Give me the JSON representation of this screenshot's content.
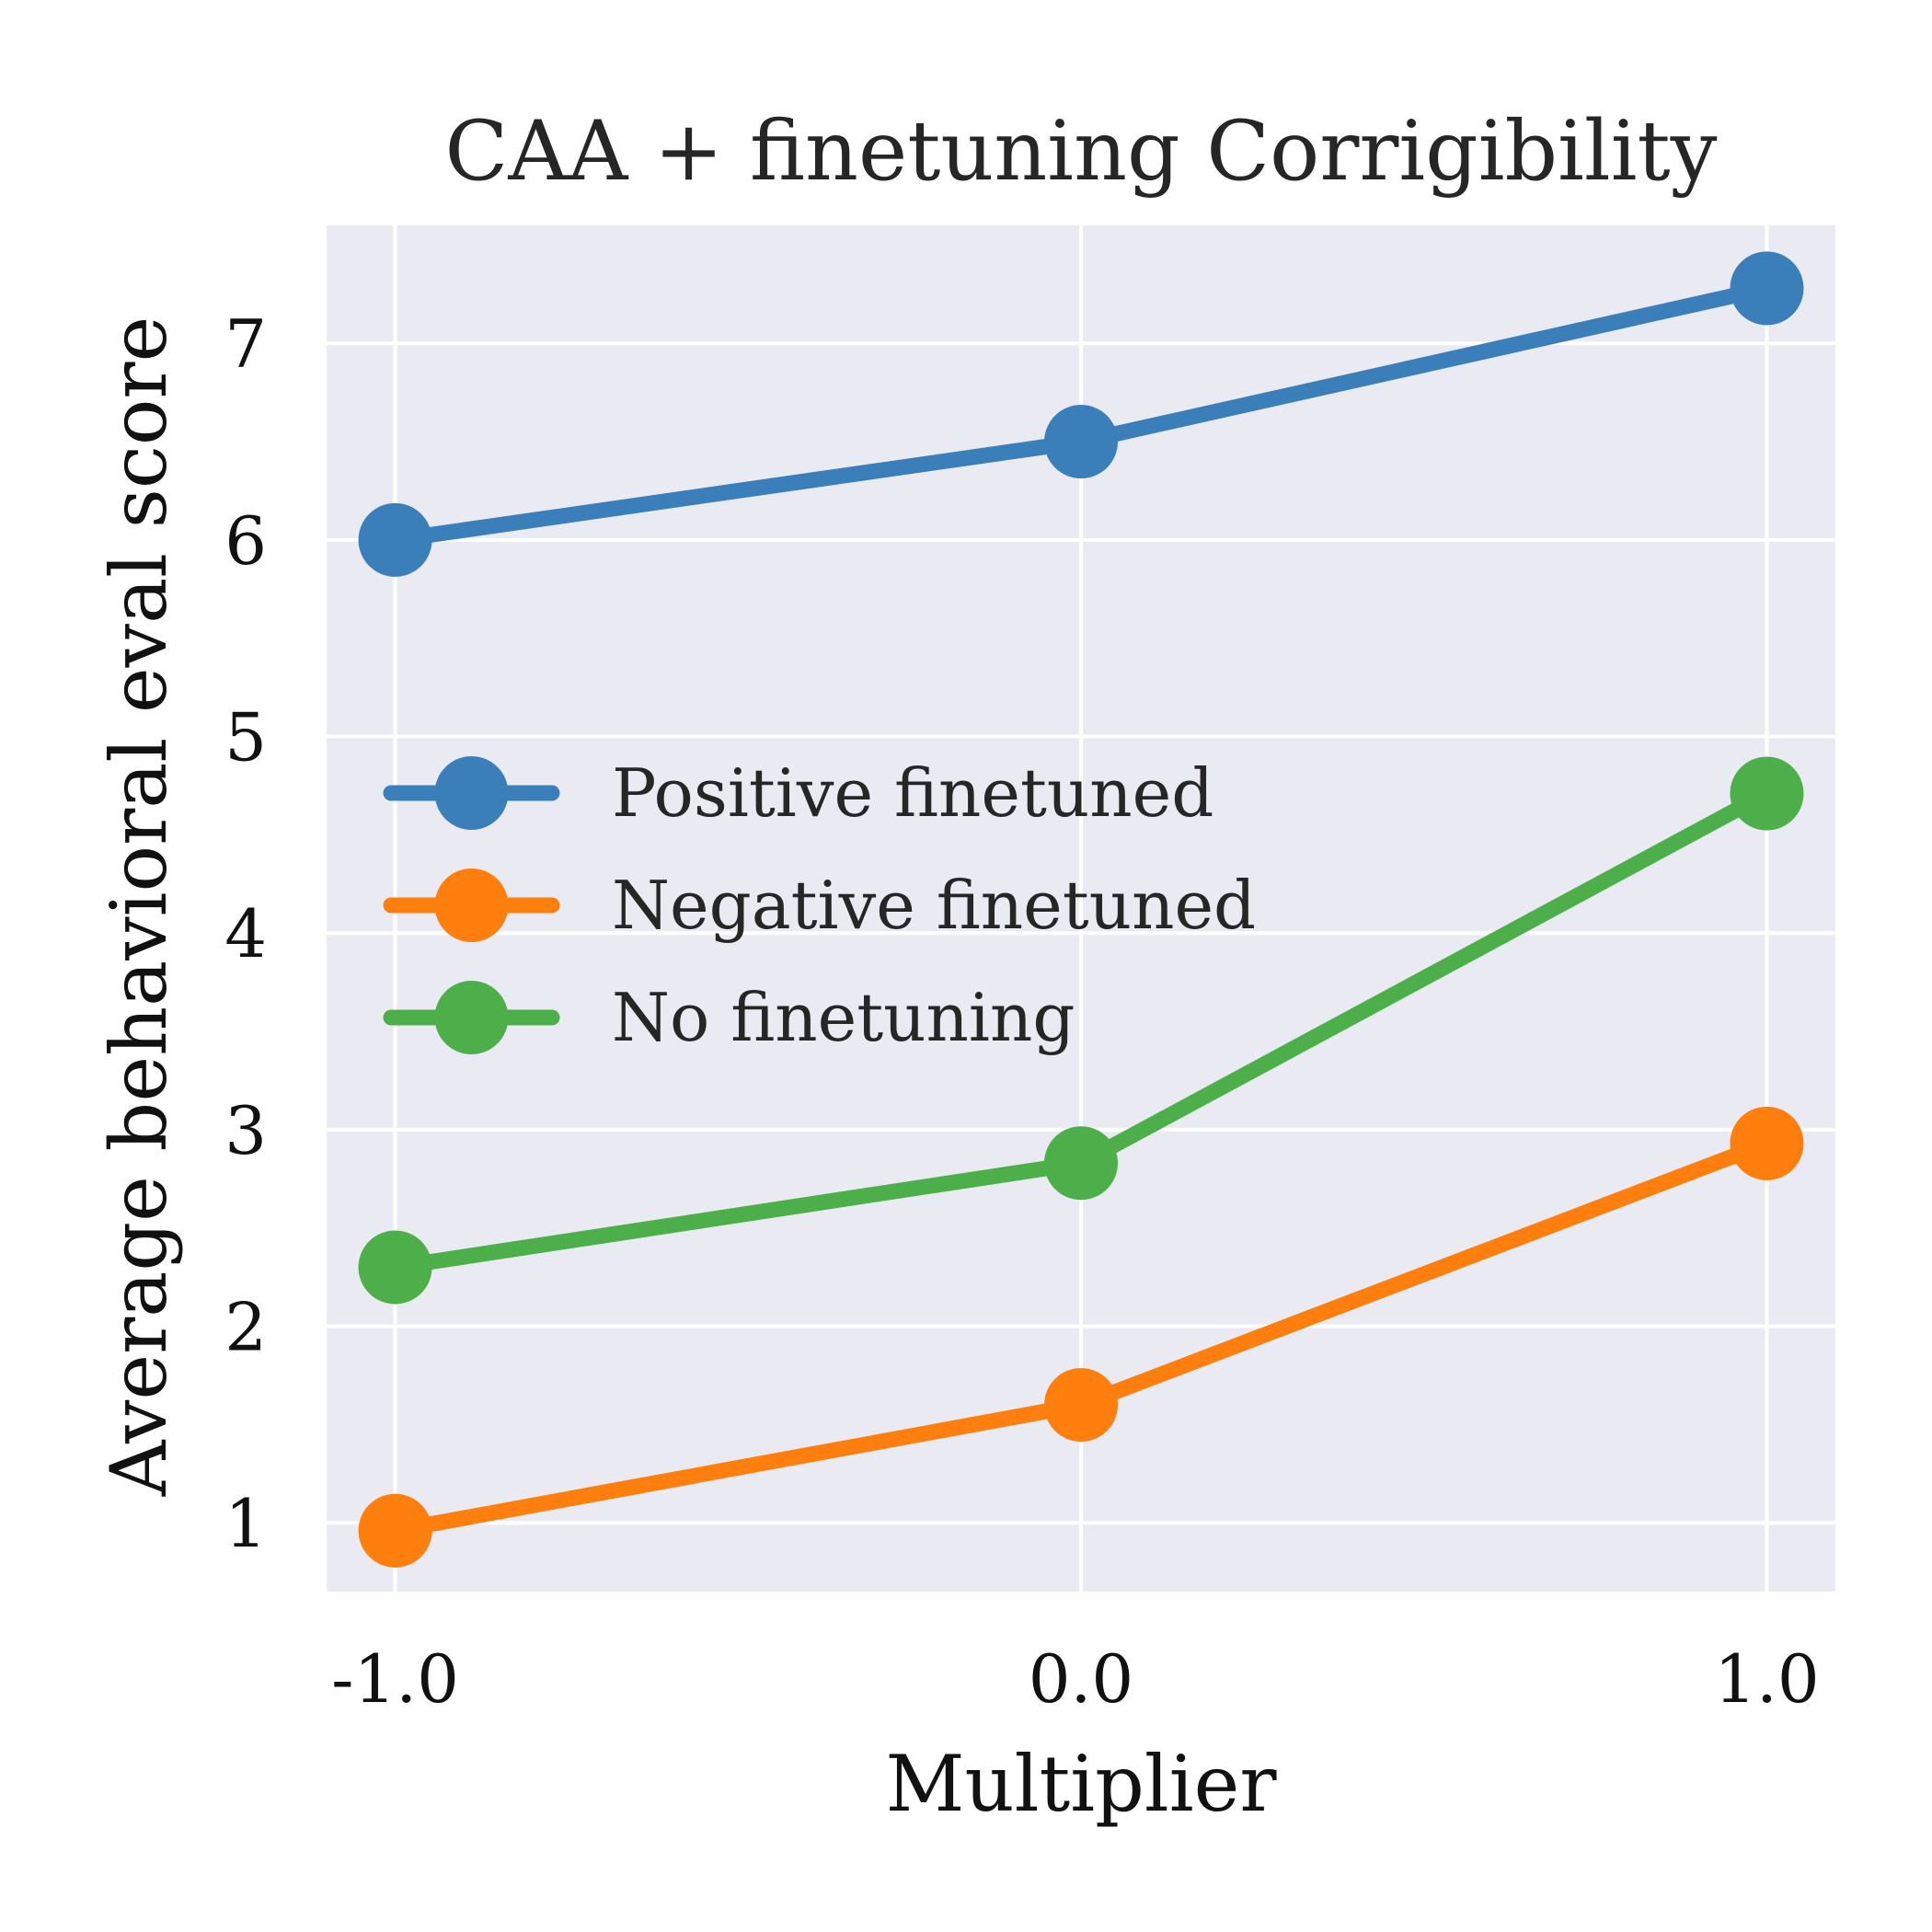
{
  "chart_data": {
    "type": "line",
    "title": "CAA + finetuning Corrigibility",
    "xlabel": "Multiplier",
    "ylabel": "Average behavioral eval score",
    "x": [
      -1.0,
      0.0,
      1.0
    ],
    "x_tick_labels": [
      "-1.0",
      "0.0",
      "1.0"
    ],
    "y_ticks": [
      1,
      2,
      3,
      4,
      5,
      6,
      7
    ],
    "y_tick_labels": [
      "1",
      "2",
      "3",
      "4",
      "5",
      "6",
      "7"
    ],
    "xlim": [
      -1.1,
      1.1
    ],
    "ylim": [
      0.65,
      7.6
    ],
    "grid": true,
    "legend_position": "center-left",
    "background_color": "#eaeaf2",
    "series": [
      {
        "name": "Positive finetuned",
        "color": "#3a7fba",
        "values": [
          6.0,
          6.5,
          7.28
        ]
      },
      {
        "name": "Negative finetuned",
        "color": "#ff7f0e",
        "values": [
          0.96,
          1.6,
          2.93
        ]
      },
      {
        "name": "No finetuning",
        "color": "#4daf4a",
        "values": [
          2.3,
          2.83,
          4.71
        ]
      }
    ]
  }
}
